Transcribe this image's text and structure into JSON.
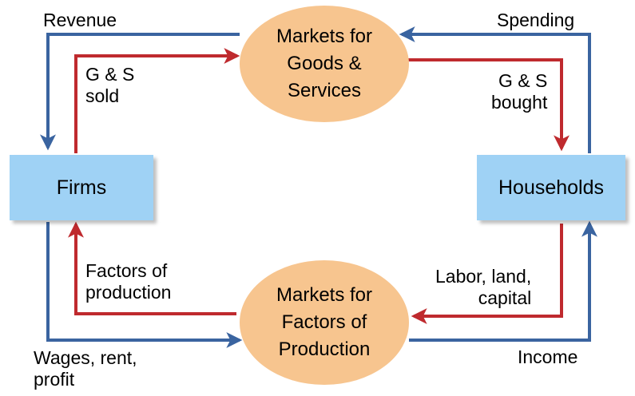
{
  "nodes": {
    "firms": "Firms",
    "households": "Households",
    "goods_market": "Markets for\nGoods &\nServices",
    "factor_market": "Markets for\nFactors of\nProduction"
  },
  "flows": {
    "revenue": "Revenue",
    "spending": "Spending",
    "gs_sold": "G & S\nsold",
    "gs_bought": "G & S\nbought",
    "factors_of_production": "Factors of\nproduction",
    "labor_land_capital": "Labor, land,\ncapital",
    "wages_rent_profit": "Wages, rent,\nprofit",
    "income": "Income"
  },
  "colors": {
    "money_flow": "#3a64a0",
    "goods_flow": "#bf2a2e",
    "box_fill": "#9fd2f5",
    "ellipse_fill": "#f7c58f"
  }
}
